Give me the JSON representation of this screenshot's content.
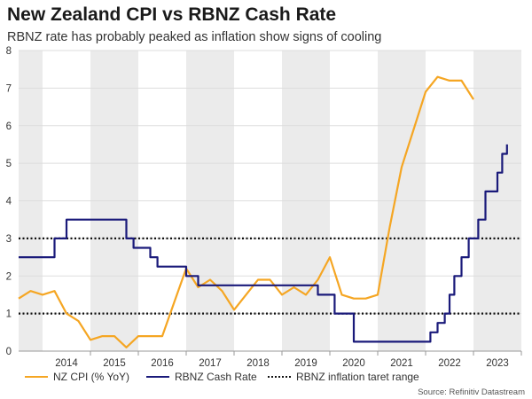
{
  "header": {
    "title": "New Zealand CPI vs RBNZ Cash Rate",
    "subtitle": "RBNZ rate has probably peaked as inflation show signs of cooling"
  },
  "legend": {
    "cpi_label": "NZ CPI (% YoY)",
    "rate_label": "RBNZ Cash Rate",
    "range_label": "RBNZ inflation taret range"
  },
  "source": "Source: Refinitiv Datastream",
  "colors": {
    "cpi": "#f5a623",
    "rate": "#1a1a7a",
    "range": "#111111",
    "band": "#ebebeb",
    "grid": "#dddddd"
  },
  "chart_data": {
    "type": "line",
    "title": "New Zealand CPI vs RBNZ Cash Rate",
    "subtitle": "RBNZ rate has probably peaked as inflation show signs of cooling",
    "xlabel": "",
    "ylabel": "",
    "xlim": [
      2013.0,
      2023.5
    ],
    "ylim": [
      0,
      8
    ],
    "y_ticks": [
      0,
      1,
      2,
      3,
      4,
      5,
      6,
      7,
      8
    ],
    "x_ticks": [
      {
        "label": "2014",
        "value": 2014.0
      },
      {
        "label": "2015",
        "value": 2015.0
      },
      {
        "label": "2016",
        "value": 2016.0
      },
      {
        "label": "2017",
        "value": 2017.0
      },
      {
        "label": "2018",
        "value": 2018.0
      },
      {
        "label": "2019",
        "value": 2019.0
      },
      {
        "label": "2020",
        "value": 2020.0
      },
      {
        "label": "2021",
        "value": 2021.0
      },
      {
        "label": "2022",
        "value": 2022.0
      },
      {
        "label": "2023",
        "value": 2023.0
      }
    ],
    "shaded_years": [
      [
        2013.0,
        2013.5
      ],
      [
        2014.5,
        2015.5
      ],
      [
        2016.5,
        2017.5
      ],
      [
        2018.5,
        2019.5
      ],
      [
        2020.5,
        2021.5
      ],
      [
        2022.5,
        2023.5
      ]
    ],
    "reference_lines": [
      {
        "name": "RBNZ inflation taret range",
        "y": 1
      },
      {
        "name": "RBNZ inflation taret range",
        "y": 3
      }
    ],
    "series": [
      {
        "name": "NZ CPI (% YoY)",
        "style": "line",
        "x": [
          2013.0,
          2013.25,
          2013.5,
          2013.75,
          2014.0,
          2014.25,
          2014.5,
          2014.75,
          2015.0,
          2015.25,
          2015.5,
          2015.75,
          2016.0,
          2016.25,
          2016.5,
          2016.75,
          2017.0,
          2017.25,
          2017.5,
          2017.75,
          2018.0,
          2018.25,
          2018.5,
          2018.75,
          2019.0,
          2019.25,
          2019.5,
          2019.75,
          2020.0,
          2020.25,
          2020.5,
          2020.75,
          2021.0,
          2021.25,
          2021.5,
          2021.75,
          2022.0,
          2022.25,
          2022.5,
          2022.75,
          2023.0
        ],
        "values": [
          1.4,
          1.6,
          1.5,
          1.6,
          1.0,
          0.8,
          0.3,
          0.4,
          0.4,
          0.1,
          0.4,
          0.4,
          0.4,
          1.3,
          2.2,
          1.7,
          1.9,
          1.6,
          1.1,
          1.5,
          1.9,
          1.9,
          1.5,
          1.7,
          1.5,
          1.9,
          2.5,
          1.5,
          1.4,
          1.4,
          1.5,
          3.3,
          4.9,
          5.9,
          6.9,
          7.3,
          7.2,
          7.2,
          6.7,
          null,
          null
        ]
      },
      {
        "name": "RBNZ Cash Rate",
        "style": "step",
        "x": [
          2013.0,
          2013.5,
          2013.75,
          2013.83,
          2014.0,
          2014.5,
          2014.75,
          2015.0,
          2015.25,
          2015.4,
          2015.6,
          2015.75,
          2015.9,
          2016.25,
          2016.5,
          2016.75,
          2016.85,
          2018.0,
          2019.0,
          2019.25,
          2019.4,
          2019.6,
          2019.75,
          2019.95,
          2020.0,
          2021.0,
          2021.5,
          2021.6,
          2021.75,
          2021.9,
          2022.0,
          2022.1,
          2022.25,
          2022.4,
          2022.6,
          2022.75,
          2022.85,
          2023.0,
          2023.1,
          2023.2
        ],
        "values": [
          2.5,
          2.5,
          3.0,
          3.0,
          3.5,
          3.5,
          3.5,
          3.5,
          3.0,
          2.75,
          2.75,
          2.5,
          2.25,
          2.25,
          2.0,
          1.75,
          1.75,
          1.75,
          1.75,
          1.5,
          1.5,
          1.0,
          1.0,
          1.0,
          0.25,
          0.25,
          0.25,
          0.5,
          0.75,
          1.0,
          1.5,
          2.0,
          2.5,
          3.0,
          3.5,
          4.25,
          4.25,
          4.75,
          5.25,
          5.5
        ]
      }
    ]
  }
}
